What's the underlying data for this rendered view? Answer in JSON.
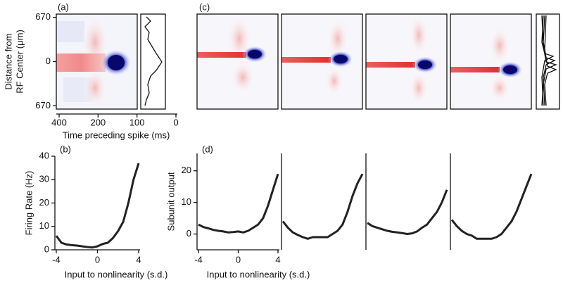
{
  "chart_data": [
    {
      "type": "heatmap",
      "label": "(a)",
      "ylabel": [
        "Distance from",
        "RF Center (μm)"
      ],
      "xlabel": "Time preceding spike (ms)",
      "categories": [
        "400",
        "200",
        "100",
        "0"
      ],
      "ylim": [
        -720,
        720
      ],
      "yticks": [
        {
          "value": 670,
          "label": "670"
        },
        0,
        {
          "value": -670,
          "label": "670"
        }
      ]
    },
    {
      "type": "heatmap",
      "label": "(c)"
    },
    {
      "type": "line",
      "label": "(b)",
      "ylabel": "Firing Rate (Hz)",
      "xlabel": "Input to nonlinearity (s.d.)",
      "x": [
        -4,
        -3.5,
        -3,
        -2.5,
        -2,
        -1.5,
        -1,
        -0.5,
        0,
        0.5,
        1,
        1.5,
        2,
        2.5,
        3,
        3.5,
        4
      ],
      "xlim": [
        -4,
        4
      ],
      "xticks": [
        -4,
        0,
        4
      ],
      "ylim": [
        0,
        40
      ],
      "yticks": [
        0,
        10,
        20,
        30,
        40
      ],
      "series": [
        {
          "color": "#222222",
          "values": [
            6,
            3,
            2.3,
            2,
            1.8,
            1.5,
            1.2,
            1,
            1.5,
            2.5,
            3,
            5,
            8,
            12,
            20,
            30,
            37
          ]
        }
      ]
    },
    {
      "type": "line",
      "label": "(d)",
      "ylabel": "Subunit output",
      "xlabel": "Input to nonlinearity (s.d.)",
      "facets": true,
      "x": [
        -4,
        -3.5,
        -3,
        -2.5,
        -2,
        -1.5,
        -1,
        -0.5,
        0,
        0.5,
        1,
        1.5,
        2,
        2.5,
        3,
        3.5,
        4
      ],
      "xlim": [
        -4,
        4
      ],
      "xticks": [
        -4,
        0,
        4
      ],
      "ylim": [
        -5,
        25.5
      ],
      "yticks": [
        0,
        10,
        20
      ],
      "series": [
        {
          "color": "#222222",
          "values": [
            3,
            2.2,
            1.8,
            1.3,
            1,
            0.8,
            0.5,
            0.6,
            0.8,
            0.5,
            1,
            2,
            3,
            5,
            9,
            14,
            19
          ]
        },
        {
          "color": "#222222",
          "values": [
            4,
            2,
            0.5,
            -0.3,
            -1,
            -1.5,
            -1,
            -1,
            -1,
            -1,
            0,
            1,
            3,
            7,
            12,
            16,
            19
          ]
        },
        {
          "color": "#222222",
          "values": [
            3.5,
            2.5,
            2,
            1.5,
            1,
            0.7,
            0.5,
            0.3,
            0,
            0.2,
            0.8,
            2,
            3,
            5,
            7,
            10,
            14
          ]
        },
        {
          "color": "#222222",
          "values": [
            4.5,
            2.5,
            1,
            0,
            -0.5,
            -1.5,
            -1.5,
            -1.5,
            -1.5,
            -1,
            0,
            2,
            4,
            7,
            11,
            15,
            19
          ]
        }
      ]
    }
  ]
}
